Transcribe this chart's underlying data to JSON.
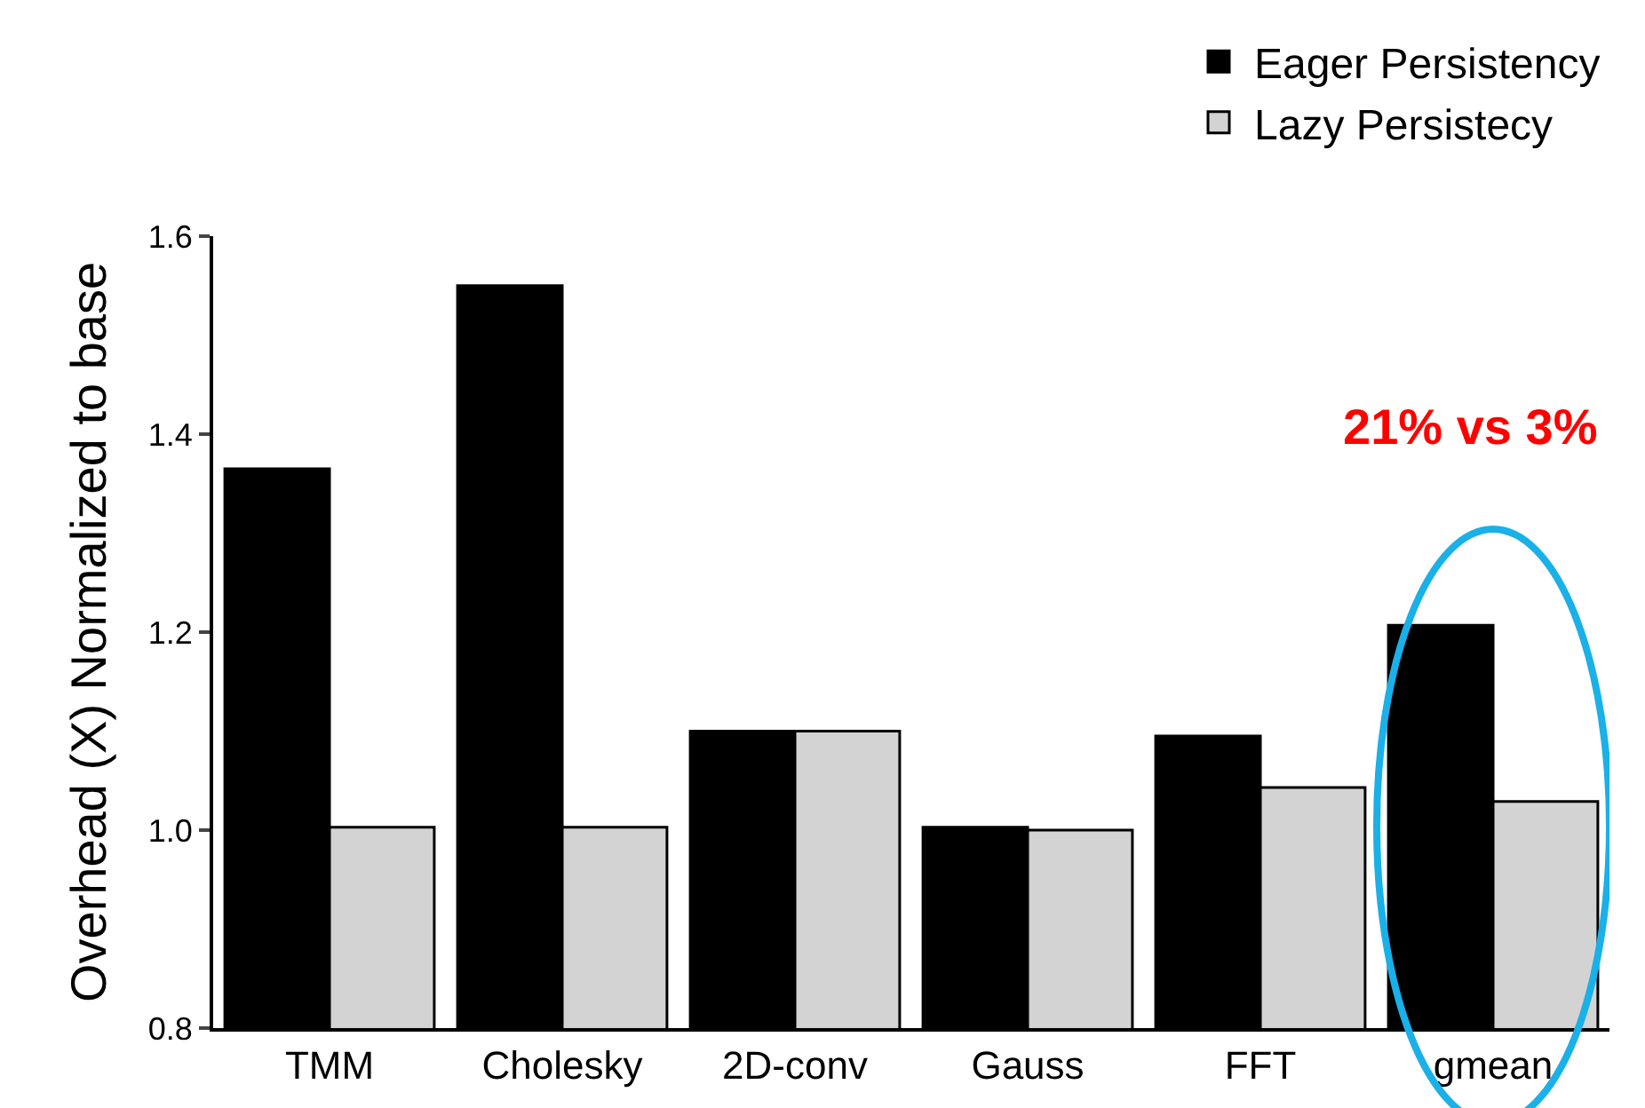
{
  "chart_data": {
    "type": "bar",
    "ylabel": "Overhead (X) Normalized to base",
    "categories": [
      "TMM",
      "Cholesky",
      "2D-conv",
      "Gauss",
      "FFT",
      "gmean"
    ],
    "series": [
      {
        "name": "Eager Persistency",
        "color": "#000000",
        "values": [
          1.365,
          1.55,
          1.1,
          1.003,
          1.095,
          1.207
        ]
      },
      {
        "name": "Lazy Persistecy",
        "color": "#d3d3d3",
        "values": [
          1.003,
          1.003,
          1.1,
          1.0,
          1.043,
          1.029
        ]
      }
    ],
    "ylim": [
      0.8,
      1.6
    ],
    "yticks": [
      0.8,
      {
        "value": 1.0,
        "label": "1.0"
      },
      1.2,
      1.4,
      1.6
    ],
    "annotations": [
      "21% vs 3%"
    ],
    "legend": "top right"
  }
}
